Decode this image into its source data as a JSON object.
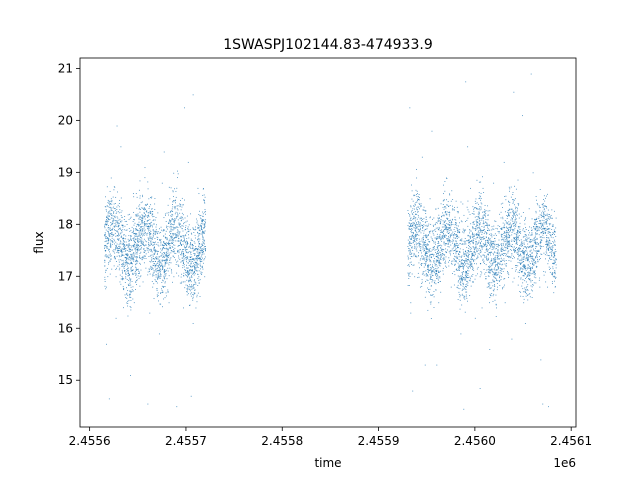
{
  "chart_data": {
    "type": "scatter",
    "title": "1SWASPJ102144.83-474933.9",
    "xlabel": "time",
    "ylabel": "flux",
    "x_offset_label": "1e6",
    "xlim": [
      2.45559,
      2.456105
    ],
    "ylim": [
      14.1,
      21.2
    ],
    "x_ticks": [
      {
        "value": 2.4556,
        "label": "2.4556"
      },
      {
        "value": 2.4557,
        "label": "2.4557"
      },
      {
        "value": 2.4558,
        "label": "2.4558"
      },
      {
        "value": 2.4559,
        "label": "2.4559"
      },
      {
        "value": 2.456,
        "label": "2.4560"
      },
      {
        "value": 2.4561,
        "label": "2.4561"
      }
    ],
    "y_ticks": [
      {
        "value": 15,
        "label": "15"
      },
      {
        "value": 16,
        "label": "16"
      },
      {
        "value": 17,
        "label": "17"
      },
      {
        "value": 18,
        "label": "18"
      },
      {
        "value": 19,
        "label": "19"
      },
      {
        "value": 20,
        "label": "20"
      },
      {
        "value": 21,
        "label": "21"
      }
    ],
    "grid": false,
    "point_color": "#1f77b4",
    "series": [
      {
        "x": [
          2.455615,
          2.455617,
          2.455619,
          2.455621,
          2.455623,
          2.455625,
          2.455627,
          2.455629,
          2.455631,
          2.455633,
          2.455635,
          2.455637,
          2.455639,
          2.455641,
          2.455643,
          2.455645,
          2.455647,
          2.455649,
          2.455651,
          2.455653,
          2.455655,
          2.455657,
          2.455659,
          2.455661,
          2.455663,
          2.455665,
          2.455667,
          2.455669,
          2.455671,
          2.455673,
          2.455675,
          2.455677,
          2.455679,
          2.455681,
          2.455683,
          2.455685,
          2.455687,
          2.455689,
          2.455691,
          2.455693,
          2.455695,
          2.455697,
          2.455699,
          2.455701,
          2.455703,
          2.455705,
          2.455707,
          2.455709,
          2.455711,
          2.455713,
          2.455715,
          2.455717,
          2.455719,
          2.455617,
          2.455622,
          2.455627,
          2.455632,
          2.455638,
          2.455642,
          2.455648,
          2.455652,
          2.455657,
          2.455662,
          2.455667,
          2.455672,
          2.455677,
          2.455682,
          2.455687,
          2.455692,
          2.455697,
          2.455702,
          2.455707,
          2.455712,
          2.455717,
          2.455931,
          2.455933,
          2.455935,
          2.455937,
          2.455939,
          2.455941,
          2.455943,
          2.455945,
          2.455947,
          2.455949,
          2.455951,
          2.455953,
          2.455955,
          2.455957,
          2.455959,
          2.455961,
          2.455963,
          2.455965,
          2.455967,
          2.455969,
          2.455971,
          2.455973,
          2.455975,
          2.455977,
          2.455979,
          2.455981,
          2.455983,
          2.455985,
          2.455987,
          2.455989,
          2.455991,
          2.455993,
          2.455995,
          2.455997,
          2.455999,
          2.456001,
          2.456003,
          2.456005,
          2.456007,
          2.456009,
          2.456011,
          2.456013,
          2.456015,
          2.456017,
          2.456019,
          2.456021,
          2.456023,
          2.456025,
          2.456027,
          2.456029,
          2.456031,
          2.456033,
          2.456035,
          2.456037,
          2.456039,
          2.456041,
          2.456043,
          2.456045,
          2.456047,
          2.456049,
          2.456051,
          2.456053,
          2.456055,
          2.456057,
          2.456059,
          2.456061,
          2.456063,
          2.456065,
          2.456067,
          2.456069,
          2.456071,
          2.456073,
          2.456075,
          2.456077,
          2.456079,
          2.456081,
          2.456083,
          2.455933,
          2.45594,
          2.455948,
          2.455955,
          2.455962,
          2.45597,
          2.455978,
          2.455985,
          2.455992,
          2.456,
          2.456008,
          2.456015,
          2.456022,
          2.45603,
          2.456038,
          2.456045,
          2.456052,
          2.45606,
          2.456068,
          2.456075,
          2.456082
        ],
        "y": [
          17.6,
          16.8,
          18.1,
          17.3,
          17.9,
          18.4,
          17.0,
          17.5,
          16.9,
          17.2,
          17.8,
          16.6,
          17.4,
          18.2,
          17.7,
          18.6,
          17.1,
          17.9,
          18.3,
          17.6,
          16.9,
          17.4,
          17.8,
          18.5,
          17.2,
          16.8,
          17.5,
          18.0,
          17.3,
          17.7,
          18.8,
          17.9,
          17.4,
          16.7,
          17.6,
          18.2,
          17.0,
          17.8,
          17.3,
          18.4,
          17.6,
          16.9,
          17.5,
          17.1,
          18.0,
          17.7,
          16.8,
          17.9,
          17.4,
          18.6,
          17.2,
          17.6,
          17.0,
          15.7,
          18.9,
          16.2,
          19.5,
          17.3,
          15.1,
          18.6,
          17.0,
          19.1,
          16.3,
          18.4,
          15.9,
          19.4,
          16.5,
          18.1,
          17.2,
          16.4,
          19.2,
          16.1,
          18.7,
          17.6,
          17.5,
          16.5,
          18.2,
          17.0,
          18.9,
          17.4,
          16.8,
          19.3,
          17.6,
          18.1,
          17.2,
          18.5,
          16.9,
          17.8,
          18.3,
          17.4,
          17.0,
          17.9,
          18.6,
          17.3,
          17.7,
          18.2,
          16.8,
          17.5,
          18.0,
          17.6,
          16.7,
          17.2,
          18.4,
          17.9,
          17.1,
          17.6,
          18.7,
          16.9,
          17.4,
          17.8,
          18.3,
          17.0,
          16.4,
          17.3,
          18.1,
          17.5,
          16.6,
          17.9,
          18.8,
          17.2,
          16.8,
          17.6,
          18.4,
          17.1,
          16.5,
          17.7,
          18.0,
          17.3,
          16.9,
          17.5,
          18.2,
          17.0,
          16.7,
          17.6,
          17.2,
          16.9,
          17.4,
          17.8,
          16.6,
          17.5,
          18.1,
          17.3,
          16.8,
          17.7,
          17.1,
          16.9,
          17.6,
          18.0,
          17.4,
          17.0,
          17.6,
          16.3,
          18.6,
          15.3,
          19.8,
          16.5,
          18.9,
          17.1,
          15.9,
          19.5,
          16.2,
          18.7,
          15.6,
          16.4,
          19.2,
          15.8,
          18.4,
          16.1,
          19.0,
          15.4,
          16.8,
          17.9
        ]
      }
    ],
    "bands": [
      {
        "x0": 2.455615,
        "x1": 2.45572,
        "y_center": 17.6,
        "spread": 0.55,
        "count": 2200
      },
      {
        "x0": 2.45593,
        "x1": 2.456084,
        "y_center": 17.6,
        "spread": 0.55,
        "count": 3000
      }
    ],
    "outliers": [
      {
        "x": 2.455698,
        "y": 20.25
      },
      {
        "x": 2.455707,
        "y": 20.5
      },
      {
        "x": 2.455628,
        "y": 19.9
      },
      {
        "x": 2.455932,
        "y": 20.25
      },
      {
        "x": 2.45599,
        "y": 20.75
      },
      {
        "x": 2.456058,
        "y": 20.9
      },
      {
        "x": 2.45604,
        "y": 20.55
      },
      {
        "x": 2.456049,
        "y": 20.1
      },
      {
        "x": 2.45562,
        "y": 14.65
      },
      {
        "x": 2.45569,
        "y": 14.5
      },
      {
        "x": 2.455705,
        "y": 14.7
      },
      {
        "x": 2.455935,
        "y": 14.8
      },
      {
        "x": 2.455988,
        "y": 14.45
      },
      {
        "x": 2.456076,
        "y": 14.5
      },
      {
        "x": 2.45607,
        "y": 14.55
      },
      {
        "x": 2.456005,
        "y": 14.85
      },
      {
        "x": 2.45566,
        "y": 14.55
      },
      {
        "x": 2.45596,
        "y": 15.3
      }
    ]
  }
}
